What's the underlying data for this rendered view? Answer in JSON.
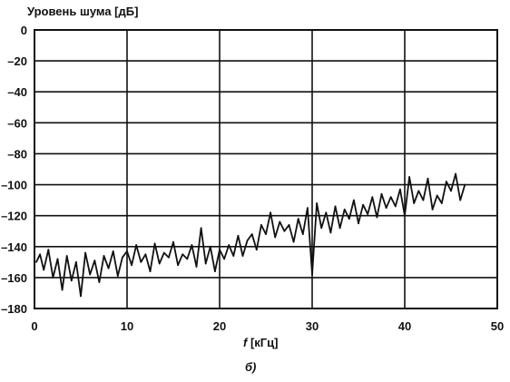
{
  "chart_data": {
    "type": "line",
    "title": "",
    "ylabel": "Уровень шума [дБ]",
    "xlabel_italic": "f",
    "xlabel_rest": " [кГц]",
    "caption": "б)",
    "xlim": [
      0,
      50
    ],
    "ylim": [
      -180,
      0
    ],
    "x_ticks": [
      0,
      10,
      20,
      30,
      40,
      50
    ],
    "y_ticks": [
      0,
      -20,
      -40,
      -60,
      -80,
      -100,
      -120,
      -140,
      -160,
      -180
    ],
    "x_tick_labels": [
      "0",
      "10",
      "20",
      "30",
      "40",
      "50"
    ],
    "y_tick_labels": [
      "0",
      "–20",
      "–40",
      "–60",
      "–80",
      "–100",
      "–120",
      "–140",
      "–160",
      "–180"
    ],
    "grid": true,
    "series": [
      {
        "color": "#111111",
        "x": [
          0.2,
          0.6,
          1.0,
          1.5,
          2.0,
          2.5,
          3.0,
          3.5,
          4.0,
          4.5,
          5.0,
          5.5,
          6.0,
          6.5,
          7.0,
          7.5,
          8.0,
          8.5,
          9.0,
          9.5,
          10.0,
          10.5,
          11.0,
          11.5,
          12.0,
          12.5,
          13.0,
          13.5,
          14.0,
          14.5,
          15.0,
          15.5,
          16.0,
          16.5,
          17.0,
          17.5,
          18.0,
          18.5,
          19.0,
          19.5,
          20.0,
          20.5,
          21.0,
          21.5,
          22.0,
          22.5,
          23.0,
          23.5,
          24.0,
          24.5,
          25.0,
          25.5,
          26.0,
          26.5,
          27.0,
          27.5,
          28.0,
          28.5,
          29.0,
          29.5,
          30.0,
          30.5,
          31.0,
          31.5,
          32.0,
          32.5,
          33.0,
          33.5,
          34.0,
          34.5,
          35.0,
          35.5,
          36.0,
          36.5,
          37.0,
          37.5,
          38.0,
          38.5,
          39.0,
          39.5,
          40.0,
          40.5,
          41.0,
          41.5,
          42.0,
          42.5,
          43.0,
          43.5,
          44.0,
          44.5,
          45.0,
          45.5,
          46.0,
          46.5
        ],
        "y": [
          -150,
          -145,
          -155,
          -142,
          -160,
          -148,
          -168,
          -146,
          -162,
          -150,
          -172,
          -144,
          -158,
          -149,
          -163,
          -146,
          -154,
          -143,
          -159,
          -147,
          -143,
          -152,
          -139,
          -150,
          -145,
          -156,
          -138,
          -151,
          -144,
          -147,
          -137,
          -152,
          -145,
          -148,
          -139,
          -153,
          -128,
          -151,
          -140,
          -156,
          -142,
          -148,
          -139,
          -146,
          -133,
          -146,
          -136,
          -132,
          -142,
          -126,
          -132,
          -118,
          -134,
          -124,
          -130,
          -126,
          -137,
          -122,
          -132,
          -115,
          -158,
          -112,
          -128,
          -118,
          -131,
          -114,
          -128,
          -116,
          -122,
          -110,
          -125,
          -113,
          -119,
          -108,
          -121,
          -106,
          -115,
          -108,
          -114,
          -103,
          -120,
          -95,
          -112,
          -104,
          -110,
          -96,
          -116,
          -107,
          -112,
          -98,
          -104,
          -93,
          -110,
          -100
        ]
      }
    ]
  }
}
